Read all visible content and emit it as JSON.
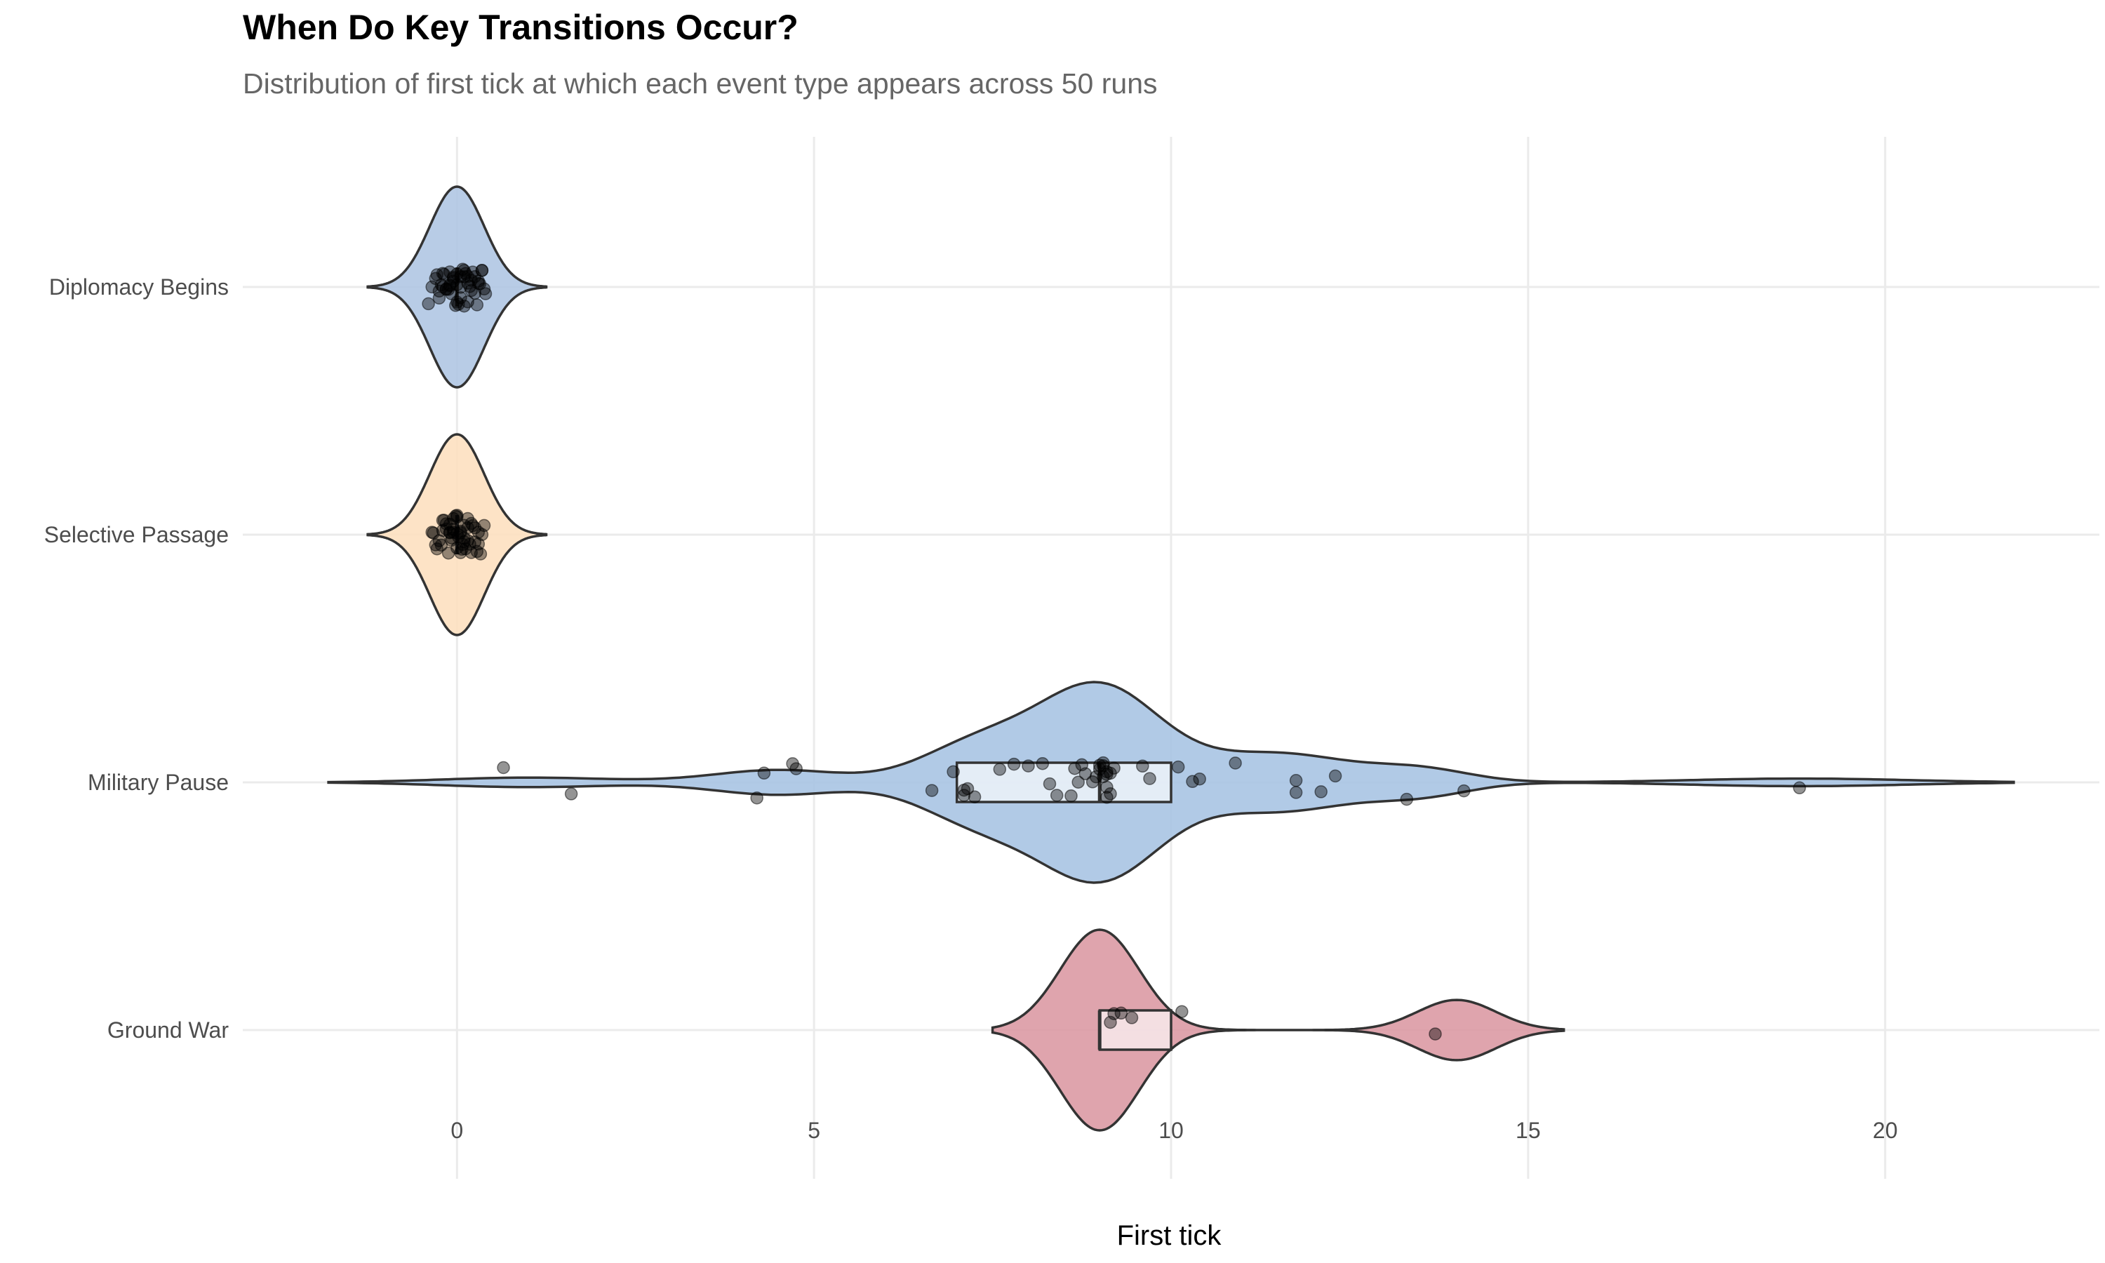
{
  "chart_data": {
    "type": "violin",
    "title": "When Do Key Transitions Occur?",
    "subtitle": "Distribution of first tick at which each event type appears across 50 runs",
    "xlabel": "First tick",
    "ylabel": "",
    "xlim": [
      -3,
      23
    ],
    "xticks": [
      0,
      5,
      10,
      15,
      20
    ],
    "grid": true,
    "legend": "none",
    "categories": [
      "Diplomacy Begins",
      "Selective Passage",
      "Military Pause",
      "Ground War"
    ],
    "series": [
      {
        "category": "Diplomacy Begins",
        "color": "#b0c6e3",
        "density_range": [
          -1.25,
          1.25
        ],
        "density_peaks": [
          {
            "x": 0,
            "w": 1.0,
            "sd": 0.38
          }
        ],
        "box": {
          "q1": 0,
          "median": 0,
          "q3": 0
        },
        "points": [
          -0.2,
          -0.15,
          -0.1,
          -0.05,
          0,
          0.05,
          0.1,
          0.15,
          0.2,
          0.3,
          -0.3,
          -0.25,
          0.25,
          0.35,
          -0.35,
          0.05,
          -0.08,
          0.12,
          -0.12,
          0.18,
          -0.18,
          0.08,
          0.02,
          -0.02,
          0.22,
          -0.22,
          0.28,
          -0.28,
          0.32,
          0.38,
          0.4,
          -0.05,
          0.0,
          0.1,
          -0.1,
          0.15,
          -0.15,
          0.2,
          -0.2,
          0.05,
          -0.05,
          0.3,
          0.35,
          -0.4,
          0.1,
          0.0,
          -0.1,
          0.25,
          -0.25,
          0.15
        ]
      },
      {
        "category": "Selective Passage",
        "color": "#fde0c0",
        "density_range": [
          -1.25,
          1.25
        ],
        "density_peaks": [
          {
            "x": 0,
            "w": 1.0,
            "sd": 0.38
          }
        ],
        "box": {
          "q1": 0,
          "median": 0,
          "q3": 0
        },
        "points": [
          -0.3,
          -0.25,
          -0.2,
          -0.15,
          -0.1,
          -0.05,
          0,
          0.05,
          0.1,
          0.15,
          0.2,
          0.25,
          0.3,
          0.35,
          -0.35,
          0.0,
          0.05,
          -0.05,
          0.1,
          -0.1,
          0.18,
          -0.18,
          0.22,
          -0.22,
          0.12,
          -0.12,
          0.28,
          -0.28,
          0.08,
          -0.08,
          0.02,
          -0.02,
          0.15,
          -0.15,
          0.2,
          -0.2,
          0.25,
          0.3,
          0.38,
          0.05,
          0.0,
          -0.05,
          0.1,
          -0.1,
          0.15,
          0.33,
          -0.33,
          0.07,
          -0.07,
          0.0
        ]
      },
      {
        "category": "Military Pause",
        "color": "#a9c4e3",
        "density_range": [
          -1.8,
          21.8
        ],
        "density_peaks": [
          {
            "x": 9,
            "w": 1.0,
            "sd": 0.85
          },
          {
            "x": 7.3,
            "w": 0.4,
            "sd": 0.8
          },
          {
            "x": 11.5,
            "w": 0.3,
            "sd": 1.0
          },
          {
            "x": 4.5,
            "w": 0.13,
            "sd": 0.9
          },
          {
            "x": 13.5,
            "w": 0.13,
            "sd": 0.7
          },
          {
            "x": 1.0,
            "w": 0.05,
            "sd": 1.2
          },
          {
            "x": 18.8,
            "w": 0.04,
            "sd": 1.5
          }
        ],
        "box": {
          "q1": 7.0,
          "median": 9.0,
          "q3": 10.0
        },
        "points": [
          0.65,
          1.6,
          4.2,
          4.3,
          4.7,
          4.75,
          6.65,
          7.1,
          7.15,
          7.25,
          6.95,
          7.1,
          7.6,
          7.8,
          8.0,
          8.2,
          8.3,
          8.4,
          8.6,
          8.65,
          8.7,
          8.75,
          8.8,
          8.9,
          9.0,
          9.05,
          9.1,
          9.1,
          9.15,
          9.2,
          9.0,
          9.05,
          9.1,
          9.6,
          9.7,
          10.1,
          10.3,
          10.4,
          10.9,
          11.75,
          11.75,
          12.1,
          12.3,
          13.3,
          14.1,
          18.8,
          9.15,
          8.95,
          9.05,
          9.1
        ]
      },
      {
        "category": "Ground War",
        "color": "#dc9aa4",
        "density_range": [
          7.5,
          15.5
        ],
        "density_peaks": [
          {
            "x": 9.0,
            "w": 1.0,
            "sd": 0.55
          },
          {
            "x": 14.0,
            "w": 0.3,
            "sd": 0.55
          }
        ],
        "box": {
          "q1": 9.0,
          "median": 9.0,
          "q3": 10.0
        },
        "points": [
          9.2,
          9.3,
          9.45,
          9.15,
          10.15,
          13.7
        ]
      }
    ]
  }
}
